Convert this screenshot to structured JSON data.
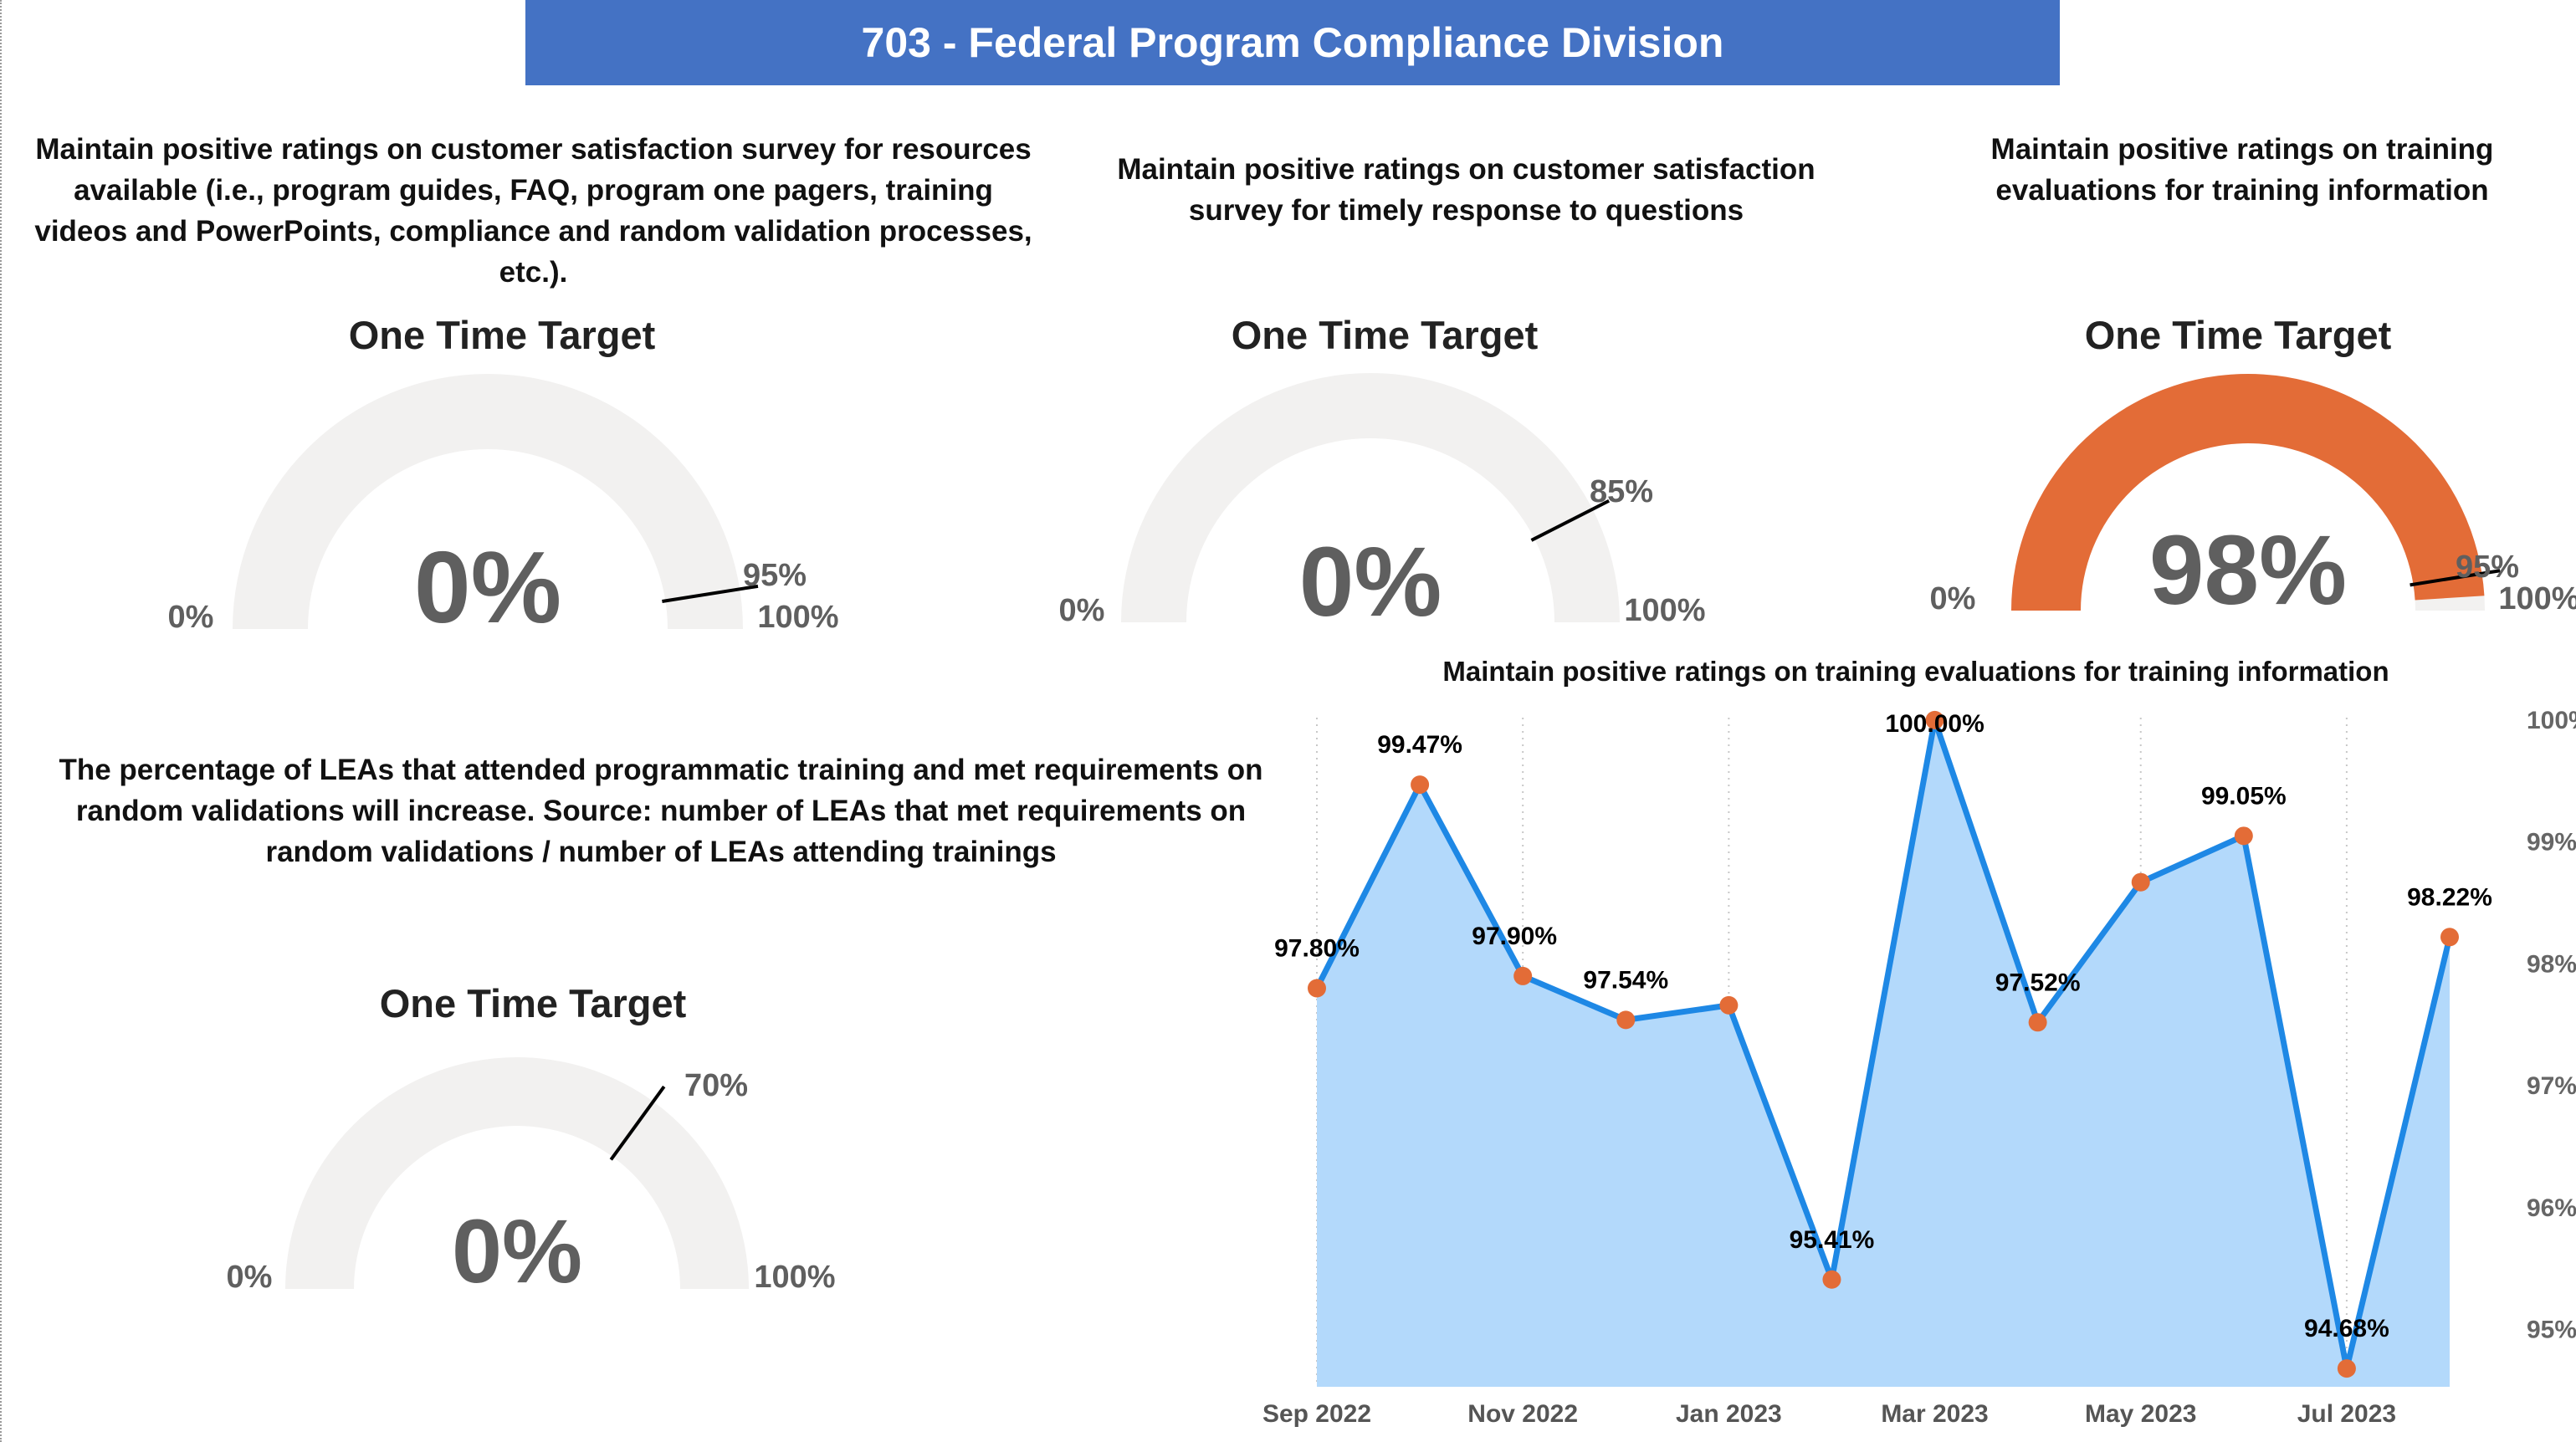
{
  "header": {
    "title": "703 - Federal Program Compliance Division"
  },
  "colors": {
    "banner": "#4472c4",
    "gauge_track": "#f2f1f0",
    "gauge_fill": "#e36c37",
    "gauge_value_text": "#5f5f5f",
    "line": "#1e88e5",
    "area": "#b3d9fb",
    "marker": "#e36c37"
  },
  "gauges": [
    {
      "description": "Maintain positive ratings on customer satisfaction survey for resources available (i.e., program guides, FAQ, program one pagers, training videos and PowerPoints, compliance and random validation processes, etc.).",
      "title": "One Time Target",
      "value_label": "0%",
      "value": 0,
      "min_label": "0%",
      "max_label": "100%",
      "target_label": "95%",
      "target": 0.95
    },
    {
      "description": "Maintain positive ratings on customer satisfaction survey for timely response to questions",
      "title": "One Time Target",
      "value_label": "0%",
      "value": 0,
      "min_label": "0%",
      "max_label": "100%",
      "target_label": "85%",
      "target": 0.85
    },
    {
      "description": "Maintain positive ratings on training evaluations for training information",
      "title": "One Time Target",
      "value_label": "98%",
      "value": 0.98,
      "min_label": "0%",
      "max_label": "100%",
      "target_label": "95%",
      "target": 0.95
    },
    {
      "description": "The percentage of LEAs that attended programmatic training and met requirements on random validations will increase. Source: number of LEAs that met requirements on random validations / number of LEAs attending trainings",
      "title": "One Time Target",
      "value_label": "0%",
      "value": 0,
      "min_label": "0%",
      "max_label": "100%",
      "target_label": "70%",
      "target": 0.7
    }
  ],
  "chart_data": {
    "type": "area",
    "title": "Maintain positive ratings on training evaluations for training information",
    "x": [
      "Sep 2022",
      "Oct 2022",
      "Nov 2022",
      "Dec 2022",
      "Jan 2023",
      "Feb 2023",
      "Mar 2023",
      "Apr 2023",
      "May 2023",
      "Jun 2023",
      "Jul 2023",
      "Aug 2023"
    ],
    "x_tick_labels": [
      "Sep 2022",
      "Nov 2022",
      "Jan 2023",
      "Mar 2023",
      "May 2023",
      "Jul 2023"
    ],
    "values": [
      97.8,
      99.47,
      97.9,
      97.54,
      97.66,
      95.41,
      100.0,
      97.52,
      98.67,
      99.05,
      94.68,
      98.22
    ],
    "data_labels": [
      "97.80%",
      "99.47%",
      "97.90%",
      "97.54%",
      "",
      "95.41%",
      "100.00%",
      "97.52%",
      "",
      "99.05%",
      "94.68%",
      "98.22%"
    ],
    "y_ticks": [
      95,
      96,
      97,
      98,
      99,
      100
    ],
    "y_tick_labels": [
      "95%",
      "96%",
      "97%",
      "98%",
      "99%",
      "100%"
    ],
    "ylim": [
      94.53,
      100.02
    ],
    "y_axis_position": "right",
    "grid": "vertical dotted"
  }
}
